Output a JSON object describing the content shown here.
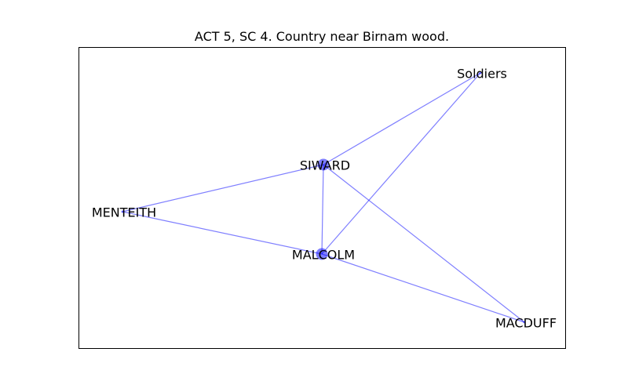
{
  "title": "ACT 5, SC 4. Country near Birnam wood.",
  "colors": {
    "edge": "#0000ff",
    "node": "#0000ff",
    "frame": "#000000",
    "background": "#ffffff"
  },
  "nodes": [
    {
      "id": "soldiers",
      "label": "Soldiers",
      "size": "point"
    },
    {
      "id": "siward",
      "label": "SIWARD",
      "size": "large"
    },
    {
      "id": "menteith",
      "label": "MENTEITH",
      "size": "point"
    },
    {
      "id": "malcolm",
      "label": "MALCOLM",
      "size": "large"
    },
    {
      "id": "macduff",
      "label": "MACDUFF",
      "size": "point"
    }
  ],
  "edges": [
    [
      "soldiers",
      "siward"
    ],
    [
      "soldiers",
      "malcolm"
    ],
    [
      "siward",
      "menteith"
    ],
    [
      "siward",
      "malcolm"
    ],
    [
      "siward",
      "macduff"
    ],
    [
      "menteith",
      "malcolm"
    ],
    [
      "malcolm",
      "macduff"
    ]
  ]
}
